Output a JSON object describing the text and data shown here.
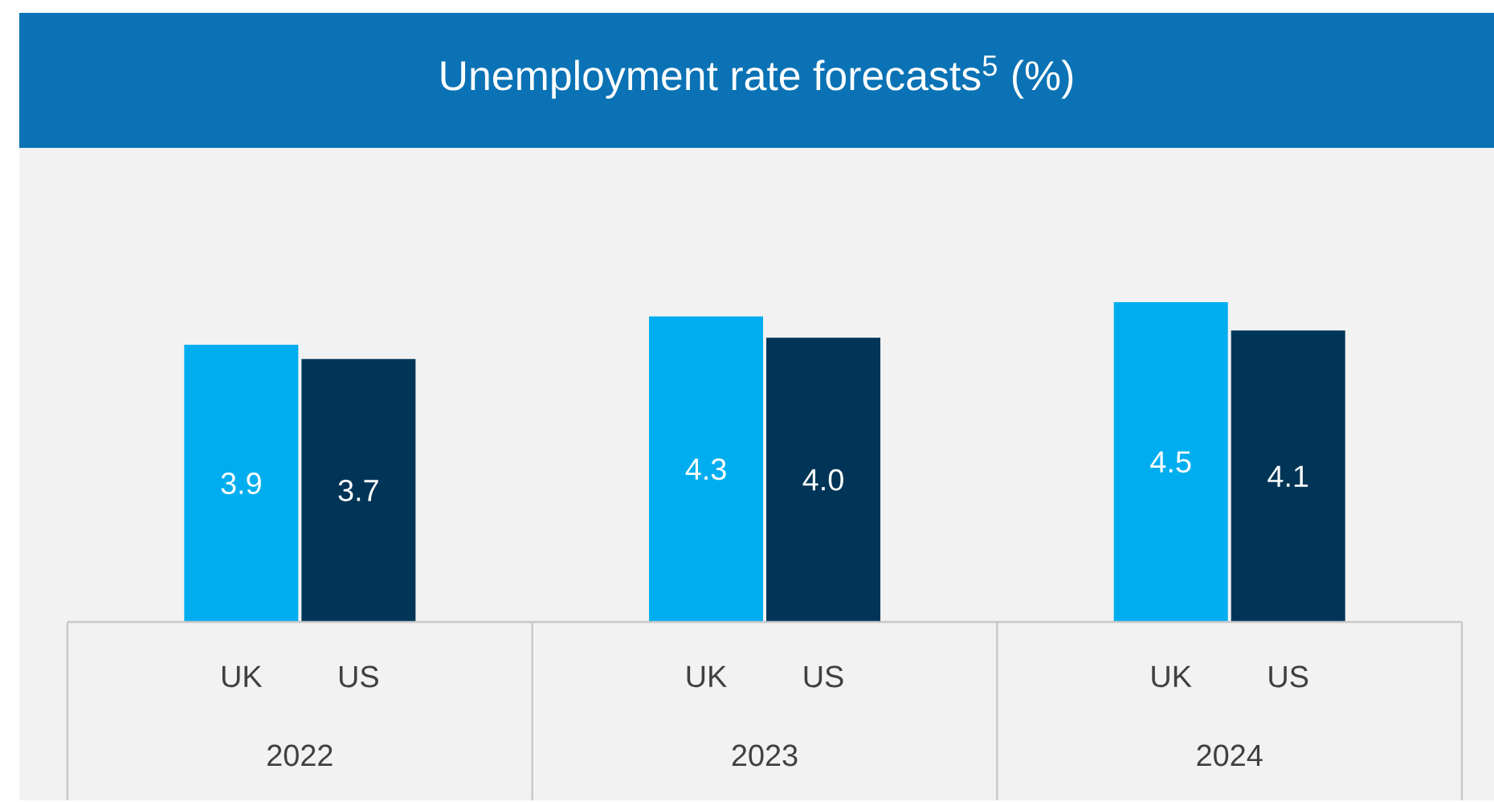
{
  "chart_data": {
    "type": "bar",
    "title": "Unemployment rate forecasts$^{5}$ (%)",
    "categories": [
      "2022",
      "2023",
      "2024"
    ],
    "series": [
      {
        "name": "UK",
        "color": "#00aeef",
        "values": [
          3.9,
          4.3,
          4.5
        ],
        "value_labels": [
          "3.9",
          "4.3",
          "4.5"
        ]
      },
      {
        "name": "US",
        "color": "#003557",
        "values": [
          3.7,
          4.0,
          4.1
        ],
        "value_labels": [
          "3.7",
          "4.0",
          "4.1"
        ]
      }
    ]
  }
}
